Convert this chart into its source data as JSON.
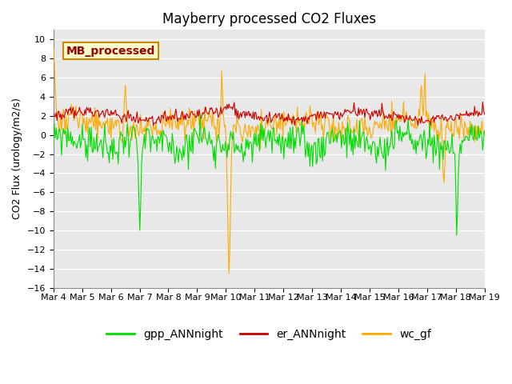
{
  "title": "Mayberry processed CO2 Fluxes",
  "ylabel": "CO2 Flux (urology/m2/s)",
  "ylim": [
    -16,
    11
  ],
  "yticks": [
    -16,
    -14,
    -12,
    -10,
    -8,
    -6,
    -4,
    -2,
    0,
    2,
    4,
    6,
    8,
    10
  ],
  "n_points": 480,
  "x_start_day": 4,
  "x_end_day": 19,
  "xtick_days": [
    4,
    5,
    6,
    7,
    8,
    9,
    10,
    11,
    12,
    13,
    14,
    15,
    16,
    17,
    18,
    19
  ],
  "gpp_color": "#00dd00",
  "er_color": "#cc0000",
  "wc_color": "#ffaa00",
  "bg_color": "#e8e8e8",
  "grid_color": "#ffffff",
  "legend_label_color": "#990000",
  "annotation_text": "MB_processed",
  "annotation_bg": "#ffffcc",
  "annotation_border": "#cc8800",
  "title_fontsize": 12,
  "axis_fontsize": 9,
  "tick_fontsize": 8,
  "legend_fontsize": 10,
  "linewidth": 0.8
}
